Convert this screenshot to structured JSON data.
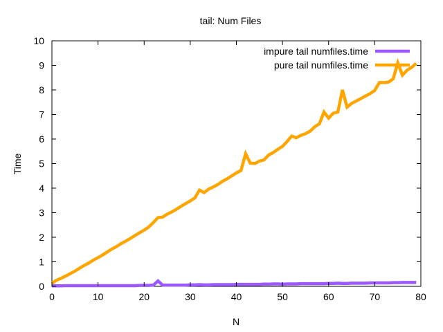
{
  "chart_data": {
    "type": "line",
    "title": "tail: Num Files",
    "xlabel": "N",
    "ylabel": "Time",
    "xlim": [
      0,
      80
    ],
    "ylim": [
      0,
      10
    ],
    "xticks": [
      0,
      10,
      20,
      30,
      40,
      50,
      60,
      70,
      80
    ],
    "yticks": [
      0,
      1,
      2,
      3,
      4,
      5,
      6,
      7,
      8,
      9,
      10
    ],
    "grid": false,
    "legend_position": "top-right",
    "series": [
      {
        "name": "impure tail numfiles.time",
        "color": "#9b59ff",
        "x": [
          0,
          1,
          2,
          3,
          4,
          5,
          6,
          7,
          8,
          9,
          10,
          11,
          12,
          13,
          14,
          15,
          16,
          17,
          18,
          19,
          20,
          21,
          22,
          23,
          24,
          25,
          26,
          27,
          28,
          29,
          30,
          31,
          32,
          33,
          34,
          35,
          36,
          37,
          38,
          39,
          40,
          41,
          42,
          43,
          44,
          45,
          46,
          47,
          48,
          49,
          50,
          51,
          52,
          53,
          54,
          55,
          56,
          57,
          58,
          59,
          60,
          61,
          62,
          63,
          64,
          65,
          66,
          67,
          68,
          69,
          70,
          71,
          72,
          73,
          74,
          75,
          76,
          77,
          78,
          79
        ],
        "y": [
          0.02,
          0.02,
          0.02,
          0.03,
          0.03,
          0.03,
          0.03,
          0.03,
          0.03,
          0.03,
          0.03,
          0.03,
          0.03,
          0.03,
          0.03,
          0.03,
          0.03,
          0.03,
          0.03,
          0.04,
          0.04,
          0.04,
          0.05,
          0.22,
          0.05,
          0.05,
          0.05,
          0.05,
          0.05,
          0.05,
          0.06,
          0.06,
          0.07,
          0.06,
          0.06,
          0.07,
          0.07,
          0.07,
          0.07,
          0.07,
          0.08,
          0.08,
          0.08,
          0.08,
          0.08,
          0.08,
          0.09,
          0.09,
          0.1,
          0.1,
          0.09,
          0.1,
          0.1,
          0.1,
          0.11,
          0.11,
          0.11,
          0.11,
          0.11,
          0.11,
          0.12,
          0.12,
          0.13,
          0.12,
          0.12,
          0.13,
          0.13,
          0.13,
          0.13,
          0.14,
          0.14,
          0.14,
          0.14,
          0.14,
          0.15,
          0.15,
          0.16,
          0.16,
          0.16,
          0.16
        ]
      },
      {
        "name": "pure tail numfiles.time",
        "color": "#ffa500",
        "x": [
          0,
          1,
          2,
          3,
          4,
          5,
          6,
          7,
          8,
          9,
          10,
          11,
          12,
          13,
          14,
          15,
          16,
          17,
          18,
          19,
          20,
          21,
          22,
          23,
          24,
          25,
          26,
          27,
          28,
          29,
          30,
          31,
          32,
          33,
          34,
          35,
          36,
          37,
          38,
          39,
          40,
          41,
          42,
          43,
          44,
          45,
          46,
          47,
          48,
          49,
          50,
          51,
          52,
          53,
          54,
          55,
          56,
          57,
          58,
          59,
          60,
          61,
          62,
          63,
          64,
          65,
          66,
          67,
          68,
          69,
          70,
          71,
          72,
          73,
          74,
          75,
          76,
          77,
          78,
          79
        ],
        "y": [
          0.12,
          0.25,
          0.33,
          0.42,
          0.52,
          0.62,
          0.74,
          0.85,
          0.95,
          1.07,
          1.17,
          1.28,
          1.4,
          1.52,
          1.62,
          1.74,
          1.84,
          1.95,
          2.07,
          2.18,
          2.29,
          2.42,
          2.6,
          2.8,
          2.82,
          2.94,
          3.03,
          3.14,
          3.26,
          3.37,
          3.48,
          3.6,
          3.92,
          3.82,
          3.96,
          4.05,
          4.15,
          4.28,
          4.38,
          4.5,
          4.62,
          4.72,
          5.4,
          5.02,
          5.0,
          5.1,
          5.15,
          5.35,
          5.45,
          5.58,
          5.7,
          5.9,
          6.12,
          6.05,
          6.15,
          6.22,
          6.32,
          6.5,
          6.62,
          7.1,
          6.85,
          7.05,
          7.1,
          8.0,
          7.3,
          7.45,
          7.55,
          7.65,
          7.75,
          7.85,
          7.98,
          8.3,
          8.3,
          8.32,
          8.45,
          9.1,
          8.6,
          8.8,
          8.92,
          9.08
        ]
      }
    ]
  }
}
